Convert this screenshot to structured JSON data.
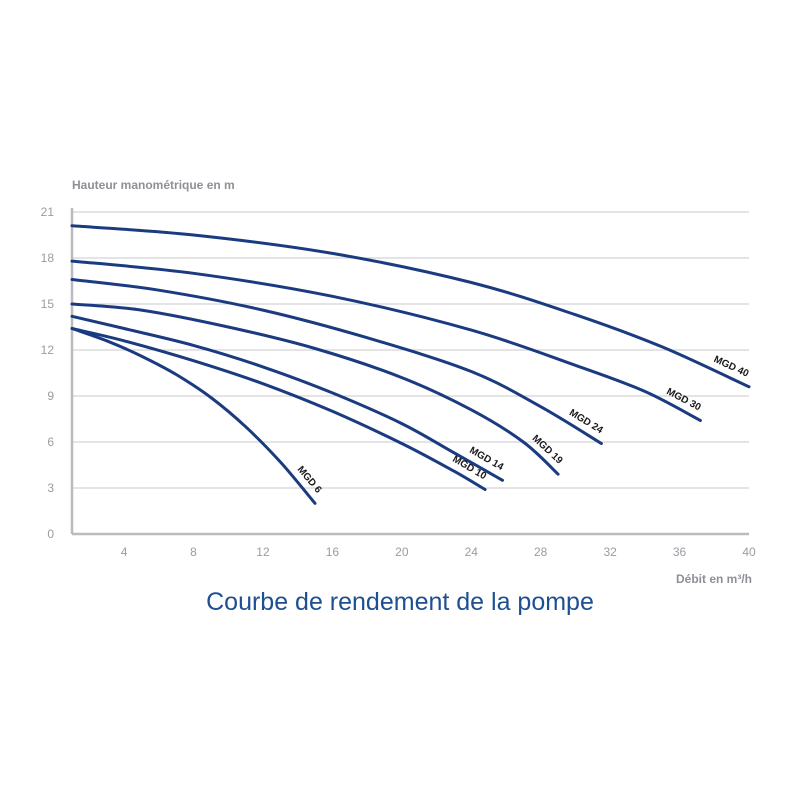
{
  "caption": "Courbe de rendement de la pompe",
  "colors": {
    "curve": "#1b3b80",
    "grid": "#c8cacf",
    "axis": "#b9bbc0",
    "caption": "#1d4f91"
  },
  "chart_data": {
    "type": "line",
    "title": "Courbe de rendement de la pompe",
    "xlabel": "Débit en m³/h",
    "ylabel": "Hauteur manométrique en m",
    "xlim": [
      1,
      40
    ],
    "ylim": [
      0,
      21
    ],
    "xticks": [
      4,
      8,
      12,
      16,
      20,
      24,
      28,
      32,
      36,
      40
    ],
    "yticks": [
      0,
      3,
      6,
      9,
      12,
      15,
      18,
      21
    ],
    "grid": true,
    "series": [
      {
        "name": "MGD 6",
        "points": [
          [
            1,
            13.4
          ],
          [
            3,
            12.6
          ],
          [
            5,
            11.6
          ],
          [
            7,
            10.4
          ],
          [
            9,
            8.9
          ],
          [
            11,
            7.0
          ],
          [
            13,
            4.7
          ],
          [
            15,
            2.0
          ]
        ]
      },
      {
        "name": "MGD 10",
        "points": [
          [
            1,
            13.4
          ],
          [
            4,
            12.6
          ],
          [
            8,
            11.3
          ],
          [
            12,
            9.8
          ],
          [
            16,
            8.0
          ],
          [
            20,
            5.9
          ],
          [
            23,
            4.1
          ],
          [
            24.8,
            2.9
          ]
        ]
      },
      {
        "name": "MGD 14",
        "points": [
          [
            1,
            14.2
          ],
          [
            4,
            13.4
          ],
          [
            8,
            12.3
          ],
          [
            12,
            10.9
          ],
          [
            16,
            9.2
          ],
          [
            20,
            7.2
          ],
          [
            23,
            5.3
          ],
          [
            25.8,
            3.5
          ]
        ]
      },
      {
        "name": "MGD 19",
        "points": [
          [
            1,
            15.0
          ],
          [
            5,
            14.6
          ],
          [
            10,
            13.5
          ],
          [
            15,
            12.1
          ],
          [
            20,
            10.2
          ],
          [
            24,
            8.1
          ],
          [
            27,
            6.0
          ],
          [
            29,
            3.9
          ]
        ]
      },
      {
        "name": "MGD 24",
        "points": [
          [
            1,
            16.6
          ],
          [
            6,
            15.9
          ],
          [
            12,
            14.6
          ],
          [
            18,
            12.8
          ],
          [
            24,
            10.6
          ],
          [
            28,
            8.3
          ],
          [
            31.5,
            5.9
          ]
        ]
      },
      {
        "name": "MGD 30",
        "points": [
          [
            1,
            17.8
          ],
          [
            8,
            17.0
          ],
          [
            16,
            15.5
          ],
          [
            24,
            13.3
          ],
          [
            30,
            11.0
          ],
          [
            34,
            9.3
          ],
          [
            37.2,
            7.4
          ]
        ]
      },
      {
        "name": "MGD 40",
        "points": [
          [
            1,
            20.1
          ],
          [
            8,
            19.5
          ],
          [
            16,
            18.3
          ],
          [
            24,
            16.4
          ],
          [
            30,
            14.3
          ],
          [
            35,
            12.2
          ],
          [
            40,
            9.6
          ]
        ]
      }
    ]
  }
}
